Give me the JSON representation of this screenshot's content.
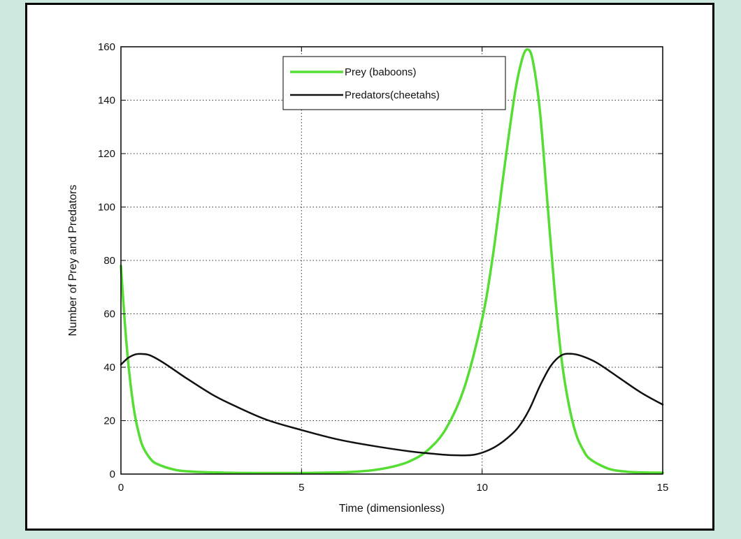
{
  "chart_data": {
    "type": "line",
    "title": "",
    "xlabel": "Time (dimensionless)",
    "ylabel": "Number of Prey and Predators",
    "xlim": [
      0,
      15
    ],
    "ylim": [
      0,
      160
    ],
    "x_ticks": [
      0,
      5,
      10,
      15
    ],
    "y_ticks": [
      0,
      20,
      40,
      60,
      80,
      100,
      120,
      140,
      160
    ],
    "grid": true,
    "legend_position": "top",
    "series": [
      {
        "name": "Prey (baboons)",
        "color": "#55dd33",
        "points": [
          [
            0,
            78
          ],
          [
            0.1,
            58
          ],
          [
            0.2,
            42
          ],
          [
            0.3,
            30
          ],
          [
            0.4,
            21
          ],
          [
            0.5,
            15
          ],
          [
            0.6,
            10.5
          ],
          [
            0.8,
            6
          ],
          [
            1.0,
            3.8
          ],
          [
            1.5,
            1.6
          ],
          [
            2.0,
            0.9
          ],
          [
            3,
            0.5
          ],
          [
            4,
            0.4
          ],
          [
            5,
            0.4
          ],
          [
            6,
            0.6
          ],
          [
            6.5,
            0.9
          ],
          [
            7,
            1.5
          ],
          [
            7.5,
            2.7
          ],
          [
            8,
            4.8
          ],
          [
            8.5,
            9
          ],
          [
            9,
            17
          ],
          [
            9.5,
            32
          ],
          [
            10,
            58
          ],
          [
            10.3,
            82
          ],
          [
            10.6,
            113
          ],
          [
            10.9,
            142
          ],
          [
            11.1,
            155
          ],
          [
            11.25,
            159
          ],
          [
            11.4,
            155
          ],
          [
            11.6,
            136
          ],
          [
            11.8,
            103
          ],
          [
            12.0,
            70
          ],
          [
            12.2,
            43
          ],
          [
            12.4,
            26
          ],
          [
            12.6,
            15
          ],
          [
            12.8,
            9
          ],
          [
            13,
            5.5
          ],
          [
            13.5,
            2
          ],
          [
            14,
            0.9
          ],
          [
            14.5,
            0.6
          ],
          [
            15,
            0.5
          ]
        ]
      },
      {
        "name": "Predators(cheetahs)",
        "color": "#111111",
        "points": [
          [
            0,
            41
          ],
          [
            0.2,
            43.5
          ],
          [
            0.4,
            44.8
          ],
          [
            0.55,
            45
          ],
          [
            0.8,
            44.5
          ],
          [
            1.2,
            41.5
          ],
          [
            1.8,
            36
          ],
          [
            2.5,
            30
          ],
          [
            3,
            26.5
          ],
          [
            4,
            20.5
          ],
          [
            5,
            16.5
          ],
          [
            6,
            13
          ],
          [
            7,
            10.5
          ],
          [
            8,
            8.5
          ],
          [
            8.5,
            7.8
          ],
          [
            9,
            7.2
          ],
          [
            9.5,
            7
          ],
          [
            9.8,
            7.3
          ],
          [
            10.1,
            8.5
          ],
          [
            10.4,
            10.5
          ],
          [
            10.7,
            13.5
          ],
          [
            11,
            17.5
          ],
          [
            11.3,
            24
          ],
          [
            11.6,
            33
          ],
          [
            11.9,
            40.5
          ],
          [
            12.2,
            44.5
          ],
          [
            12.5,
            45
          ],
          [
            12.8,
            44
          ],
          [
            13.2,
            41.5
          ],
          [
            13.8,
            36
          ],
          [
            14.4,
            30.5
          ],
          [
            15,
            26
          ]
        ]
      }
    ]
  }
}
